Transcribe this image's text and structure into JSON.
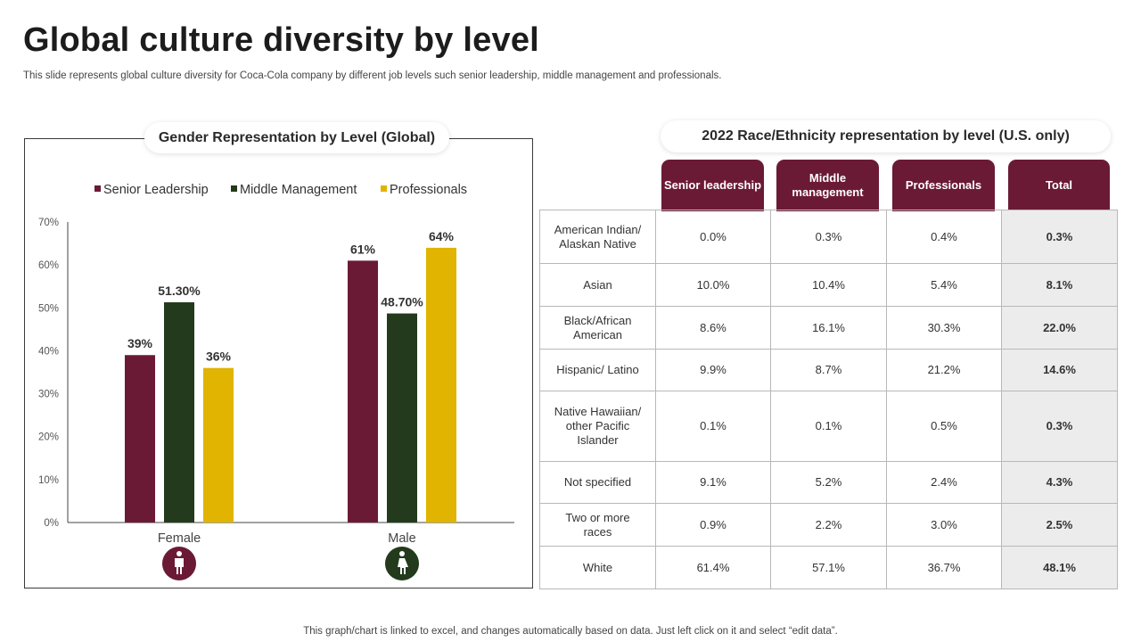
{
  "header": {
    "title": "Global culture diversity by level",
    "subtitle": "This slide represents global culture diversity for Coca-Cola company by different job levels such senior leadership, middle management and professionals."
  },
  "footer": {
    "note": "This graph/chart is linked to excel,  and changes automatically based on data. Just left click on it and select “edit data”."
  },
  "colors": {
    "senior": "#6b1a35",
    "middle": "#233a1c",
    "professionals": "#e0b400",
    "axis": "#444444"
  },
  "chart_data": {
    "type": "bar",
    "title": "Gender Representation by Level (Global)",
    "categories": [
      "Female",
      "Male"
    ],
    "category_icons": [
      "female-person-icon",
      "male-person-icon"
    ],
    "series": [
      {
        "name": "Senior Leadership",
        "values": [
          39,
          61
        ],
        "labels": [
          "39%",
          "61%"
        ]
      },
      {
        "name": "Middle Management",
        "values": [
          51.3,
          48.7
        ],
        "labels": [
          "51.30%",
          "48.70%"
        ]
      },
      {
        "name": "Professionals",
        "values": [
          36,
          64
        ],
        "labels": [
          "36%",
          "64%"
        ]
      }
    ],
    "ylim": [
      0,
      70
    ],
    "yticks": [
      0,
      10,
      20,
      30,
      40,
      50,
      60,
      70
    ],
    "ytick_labels": [
      "0%",
      "10%",
      "20%",
      "30%",
      "40%",
      "50%",
      "60%",
      "70%"
    ],
    "legend_position": "top",
    "grid": false
  },
  "table": {
    "title": "2022 Race/Ethnicity representation by level (U.S. only)",
    "headers": [
      "Senior leadership",
      "Middle management",
      "Professionals",
      "Total"
    ],
    "rows": [
      {
        "label": "American Indian/ Alaskan Native",
        "values": [
          "0.0%",
          "0.3%",
          "0.4%",
          "0.3%"
        ]
      },
      {
        "label": "Asian",
        "values": [
          "10.0%",
          "10.4%",
          "5.4%",
          "8.1%"
        ]
      },
      {
        "label": "Black/African American",
        "values": [
          "8.6%",
          "16.1%",
          "30.3%",
          "22.0%"
        ]
      },
      {
        "label": "Hispanic/ Latino",
        "values": [
          "9.9%",
          "8.7%",
          "21.2%",
          "14.6%"
        ]
      },
      {
        "label": "Native Hawaiian/ other Pacific Islander",
        "values": [
          "0.1%",
          "0.1%",
          "0.5%",
          "0.3%"
        ]
      },
      {
        "label": "Not specified",
        "values": [
          "9.1%",
          "5.2%",
          "2.4%",
          "4.3%"
        ]
      },
      {
        "label": "Two or more races",
        "values": [
          "0.9%",
          "2.2%",
          "3.0%",
          "2.5%"
        ]
      },
      {
        "label": "White",
        "values": [
          "61.4%",
          "57.1%",
          "36.7%",
          "48.1%"
        ]
      }
    ]
  }
}
